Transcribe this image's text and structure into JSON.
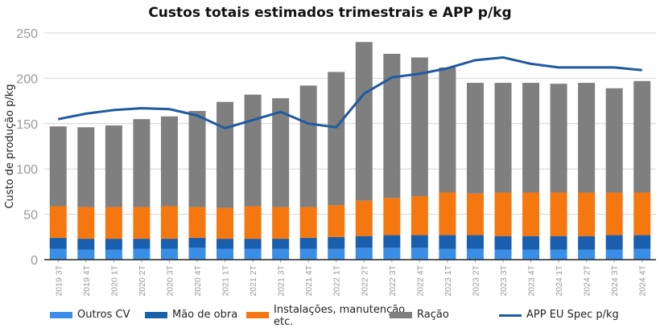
{
  "chart_data": {
    "type": "bar",
    "stacked": true,
    "title": "Custos totais estimados trimestrais e APP p/kg",
    "xlabel": "",
    "ylabel": "Custo de produção p/kg",
    "ylim": [
      0,
      250
    ],
    "yticks": [
      0,
      50,
      100,
      150,
      200,
      250
    ],
    "grid": true,
    "legend": "bottom",
    "categories": [
      "2019 3T",
      "2019 4T",
      "2020 1T",
      "2020 2T",
      "2020 3T",
      "2020 4T",
      "2021 1T",
      "2021 2T",
      "2021 3T",
      "2021 4T",
      "2022 1T",
      "2022 2T",
      "2022 3T",
      "2022 4T",
      "2023 1T",
      "2023 2T",
      "2023 3T",
      "2023 4T",
      "2024 1T",
      "2024 2T",
      "2024 3T",
      "2024 4T"
    ],
    "series": [
      {
        "name": "Outros CV",
        "kind": "bar",
        "color": "#3a8ee6",
        "values": [
          12,
          11,
          11,
          12,
          12,
          13,
          12,
          12,
          12,
          12,
          12,
          13,
          13,
          13,
          12,
          12,
          11,
          11,
          11,
          11,
          11,
          12
        ]
      },
      {
        "name": "Mão de obra",
        "kind": "bar",
        "color": "#1a5fad",
        "values": [
          12,
          12,
          12,
          11,
          11,
          11,
          11,
          11,
          11,
          12,
          13,
          13,
          14,
          14,
          15,
          15,
          15,
          15,
          15,
          15,
          16,
          15
        ]
      },
      {
        "name": "Instalações, manutenção etc.",
        "kind": "bar",
        "color": "#f5770f",
        "values": [
          35,
          35,
          35,
          35,
          36,
          34,
          34,
          36,
          35,
          34,
          35,
          39,
          41,
          43,
          47,
          46,
          48,
          48,
          48,
          48,
          47,
          47
        ]
      },
      {
        "name": "Ração",
        "kind": "bar",
        "color": "#7f7f7f",
        "values": [
          88,
          88,
          90,
          97,
          99,
          106,
          117,
          123,
          120,
          134,
          147,
          175,
          159,
          153,
          138,
          122,
          121,
          121,
          120,
          121,
          115,
          123
        ]
      },
      {
        "name": "APP EU Spec p/kg",
        "kind": "line",
        "color": "#1f5aa0",
        "values": [
          155,
          161,
          165,
          167,
          166,
          159,
          145,
          154,
          163,
          150,
          146,
          183,
          201,
          205,
          211,
          220,
          223,
          216,
          212,
          212,
          212,
          209
        ]
      }
    ],
    "legend_labels": [
      "Outros CV",
      "Mão de obra",
      "Instalações, manutenção",
      "etc.",
      "Ração",
      "APP EU Spec p/kg"
    ]
  }
}
